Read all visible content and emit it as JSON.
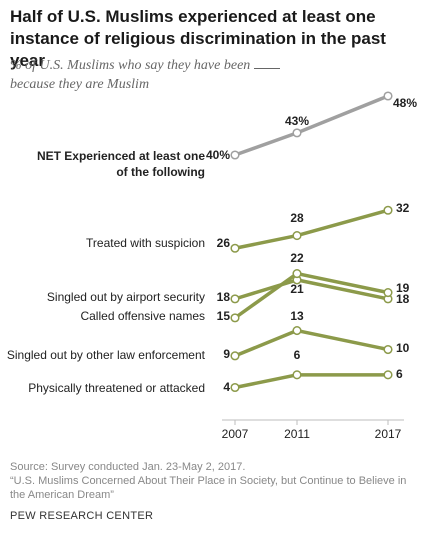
{
  "title": "Half of U.S. Muslims experienced at least one instance of religious discrimination in the past year",
  "subtitle_pre": "% of U.S. Muslims who say they have been",
  "subtitle_post": "because they are Muslim",
  "source": "Source: Survey conducted Jan. 23-May 2, 2017.",
  "report": "“U.S. Muslims Concerned About Their Place in Society, but Continue to Believe in the American Dream”",
  "brand": "PEW RESEARCH CENTER",
  "colors": {
    "net": "#a0a0a0",
    "item": "#8c9a4a",
    "marker_fill": "#ffffff"
  },
  "chart_data": {
    "type": "line",
    "x": [
      "2007",
      "2011",
      "2017"
    ],
    "series": [
      {
        "name": "NET Experienced at least one of the following",
        "values": [
          40,
          43,
          48
        ],
        "labels": [
          "40%",
          "43%",
          "48%"
        ]
      },
      {
        "name": "Treated with suspicion",
        "values": [
          26,
          28,
          32
        ],
        "labels": [
          "26",
          "28",
          "32"
        ]
      },
      {
        "name": "Singled out by airport security",
        "values": [
          18,
          21,
          18
        ],
        "labels": [
          "18",
          "21",
          "18"
        ]
      },
      {
        "name": "Called offensive names",
        "values": [
          15,
          22,
          19
        ],
        "labels": [
          "15",
          "22",
          "19"
        ]
      },
      {
        "name": "Singled out by other law enforcement",
        "values": [
          9,
          13,
          10
        ],
        "labels": [
          "9",
          "13",
          "10"
        ]
      },
      {
        "name": "Physically threatened or attacked",
        "values": [
          4,
          6,
          6
        ],
        "labels": [
          "4",
          "6",
          "6"
        ]
      }
    ]
  }
}
